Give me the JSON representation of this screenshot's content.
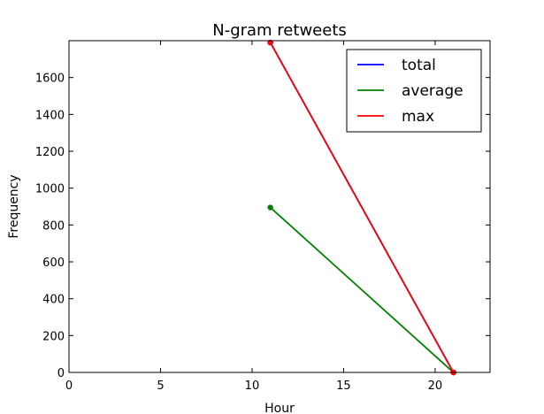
{
  "chart_data": {
    "type": "line",
    "title": "N-gram retweets",
    "xlabel": "Hour",
    "ylabel": "Frequency",
    "xlim": [
      0,
      23
    ],
    "ylim": [
      0,
      1800
    ],
    "xticks": [
      0,
      5,
      10,
      15,
      20
    ],
    "yticks": [
      0,
      200,
      400,
      600,
      800,
      1000,
      1200,
      1400,
      1600
    ],
    "grid": false,
    "legend_position": "top-right",
    "series": [
      {
        "name": "total",
        "color": "#0000ff",
        "x": [
          11,
          21
        ],
        "y": [
          1790,
          0
        ]
      },
      {
        "name": "average",
        "color": "#008000",
        "x": [
          11,
          21
        ],
        "y": [
          895,
          0
        ]
      },
      {
        "name": "max",
        "color": "#ff0000",
        "x": [
          11,
          21
        ],
        "y": [
          1790,
          0
        ]
      }
    ]
  }
}
